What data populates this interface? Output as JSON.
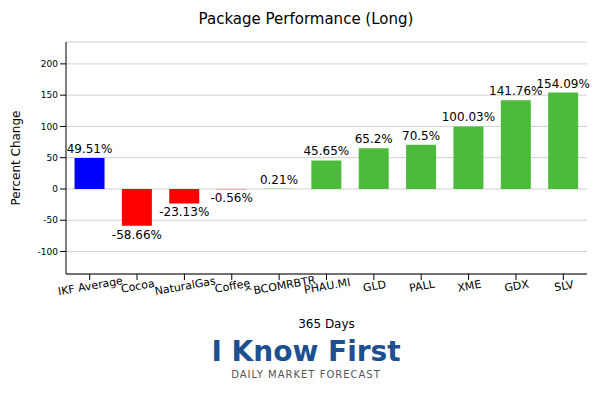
{
  "chart_data": {
    "type": "bar",
    "title": "Package Performance (Long)",
    "x_label": "365 Days",
    "y_label": "Percent Change",
    "categories": [
      "IKF Average",
      "Cocoa",
      "NaturalGas",
      "Coffee",
      "^BCOMRBTR",
      "PHAU.MI",
      "GLD",
      "PALL",
      "XME",
      "GDX",
      "SLV"
    ],
    "values": [
      49.51,
      -58.66,
      -23.13,
      -0.56,
      0.21,
      45.65,
      65.2,
      70.5,
      100.03,
      141.76,
      154.09
    ],
    "value_labels": [
      "49.51%",
      "-58.66%",
      "-23.13%",
      "-0.56%",
      "0.21%",
      "45.65%",
      "65.2%",
      "70.5%",
      "100.03%",
      "141.76%",
      "154.09%"
    ],
    "colors": [
      "#0000ff",
      "#ff0000",
      "#ff0000",
      "#ff0000",
      "#4cbb3c",
      "#4cbb3c",
      "#4cbb3c",
      "#4cbb3c",
      "#4cbb3c",
      "#4cbb3c",
      "#4cbb3c"
    ],
    "ylim": [
      -136,
      235
    ],
    "yticks": [
      -100,
      -50,
      0,
      50,
      100,
      150,
      200
    ],
    "grid": true,
    "data_labels": true,
    "annotations": [
      "I Know First",
      "DAILY MARKET FORECAST"
    ]
  }
}
